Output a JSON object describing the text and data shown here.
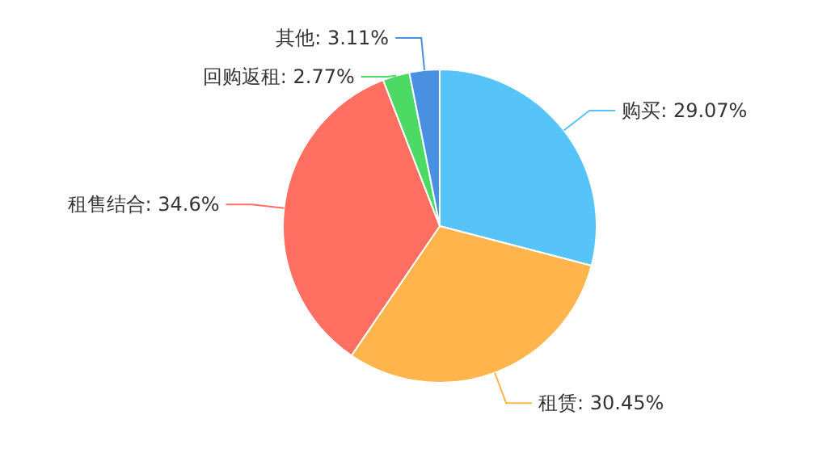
{
  "chart_data": {
    "type": "pie",
    "categories": [
      "购买",
      "租赁",
      "租售结合",
      "回购返租",
      "其他"
    ],
    "values": [
      29.07,
      30.45,
      34.6,
      2.77,
      3.11
    ],
    "value_labels": [
      "29.07%",
      "30.45%",
      "34.6%",
      "2.77%",
      "3.11%"
    ],
    "colors": [
      "#56c4f8",
      "#ffb54c",
      "#ff6f61",
      "#4cd964",
      "#4a90e2"
    ]
  }
}
